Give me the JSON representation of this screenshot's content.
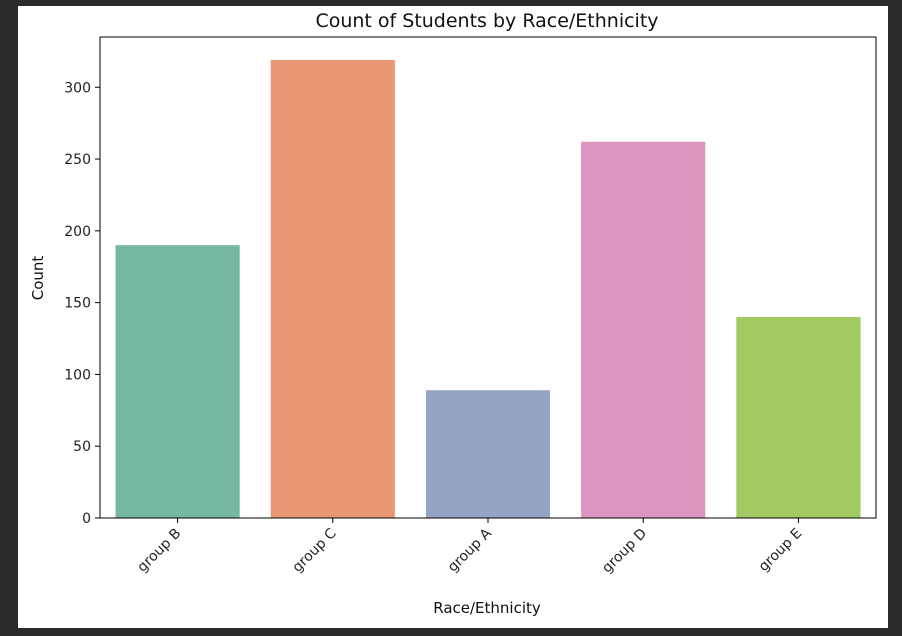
{
  "chart_data": {
    "type": "bar",
    "title": "Count of Students by Race/Ethnicity",
    "xlabel": "Race/Ethnicity",
    "ylabel": "Count",
    "categories": [
      "group B",
      "group C",
      "group A",
      "group D",
      "group E"
    ],
    "values": [
      190,
      319,
      89,
      262,
      140
    ],
    "colors": [
      "#76b7a0",
      "#e99673",
      "#95a4c4",
      "#dc94c0",
      "#a3c962"
    ],
    "ylim": [
      0,
      335
    ],
    "yticks": [
      0,
      50,
      100,
      150,
      200,
      250,
      300
    ],
    "ytick_labels": [
      "0",
      "50",
      "100",
      "150",
      "200",
      "250",
      "300"
    ],
    "xtick_rotation": 45,
    "grid": false,
    "legend": "none"
  }
}
